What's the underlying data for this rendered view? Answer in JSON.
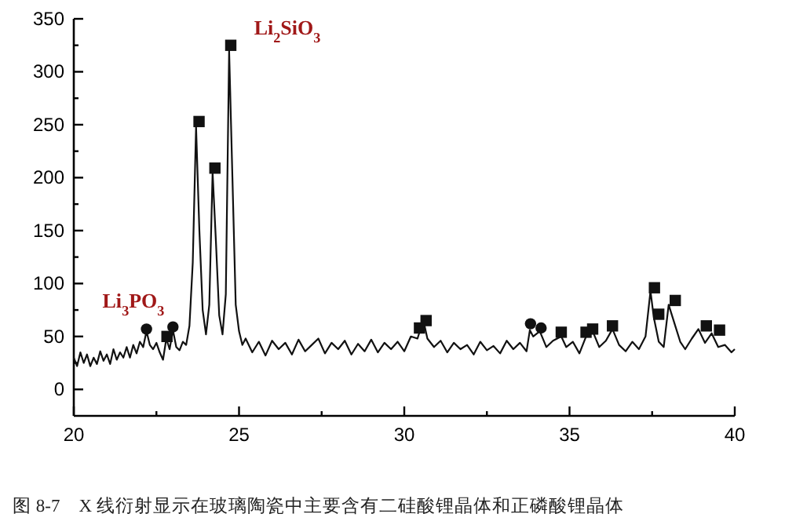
{
  "chart_data": {
    "type": "line",
    "xlim": [
      20,
      40
    ],
    "ylim": [
      -25,
      350
    ],
    "xticks": [
      20,
      {
        "value": 22.5,
        "label": null
      },
      25,
      {
        "value": 27.5,
        "label": null
      },
      30,
      {
        "value": 32.5,
        "label": null
      },
      35,
      {
        "value": 37.5,
        "label": null
      },
      40
    ],
    "yticks": [
      0,
      {
        "value": 25,
        "label": null
      },
      50,
      {
        "value": 75,
        "label": null
      },
      100,
      {
        "value": 125,
        "label": null
      },
      150,
      {
        "value": 175,
        "label": null
      },
      200,
      {
        "value": 225,
        "label": null
      },
      250,
      {
        "value": 275,
        "label": null
      },
      300,
      {
        "value": 325,
        "label": null
      },
      350
    ],
    "series": [
      {
        "color": "#111111",
        "line_style": "solid",
        "marker": "none",
        "x": [
          20.0,
          20.1,
          20.2,
          20.3,
          20.4,
          20.5,
          20.6,
          20.7,
          20.8,
          20.9,
          21.0,
          21.1,
          21.2,
          21.3,
          21.4,
          21.5,
          21.6,
          21.7,
          21.8,
          21.9,
          22.0,
          22.1,
          22.2,
          22.3,
          22.4,
          22.5,
          22.6,
          22.7,
          22.8,
          22.9,
          23.0,
          23.1,
          23.2,
          23.3,
          23.4,
          23.5,
          23.6,
          23.7,
          23.8,
          23.9,
          24.0,
          24.1,
          24.2,
          24.3,
          24.4,
          24.5,
          24.6,
          24.7,
          24.8,
          24.9,
          25.0,
          25.1,
          25.2,
          25.4,
          25.6,
          25.8,
          26.0,
          26.2,
          26.4,
          26.6,
          26.8,
          27.0,
          27.2,
          27.4,
          27.6,
          27.8,
          28.0,
          28.2,
          28.4,
          28.6,
          28.8,
          29.0,
          29.2,
          29.4,
          29.6,
          29.8,
          30.0,
          30.2,
          30.4,
          30.5,
          30.6,
          30.7,
          30.9,
          31.1,
          31.3,
          31.5,
          31.7,
          31.9,
          32.1,
          32.3,
          32.5,
          32.7,
          32.9,
          33.1,
          33.3,
          33.5,
          33.7,
          33.8,
          33.9,
          34.1,
          34.3,
          34.5,
          34.75,
          34.9,
          35.1,
          35.3,
          35.5,
          35.7,
          35.9,
          36.1,
          36.3,
          36.5,
          36.7,
          36.9,
          37.1,
          37.3,
          37.45,
          37.55,
          37.7,
          37.85,
          38.0,
          38.2,
          38.35,
          38.5,
          38.7,
          38.9,
          39.1,
          39.3,
          39.5,
          39.7,
          39.9,
          40.0
        ],
        "values": [
          30,
          22,
          35,
          25,
          33,
          22,
          30,
          24,
          36,
          27,
          33,
          24,
          38,
          28,
          35,
          30,
          40,
          30,
          42,
          34,
          45,
          40,
          55,
          42,
          38,
          44,
          35,
          28,
          48,
          38,
          56,
          40,
          37,
          45,
          42,
          60,
          120,
          248,
          150,
          75,
          52,
          80,
          205,
          140,
          70,
          52,
          90,
          320,
          200,
          80,
          55,
          42,
          48,
          35,
          45,
          32,
          46,
          38,
          44,
          33,
          47,
          36,
          42,
          48,
          34,
          44,
          38,
          46,
          33,
          43,
          36,
          47,
          35,
          44,
          38,
          45,
          36,
          50,
          48,
          58,
          62,
          48,
          40,
          46,
          35,
          44,
          38,
          42,
          33,
          45,
          37,
          41,
          34,
          46,
          38,
          44,
          36,
          56,
          50,
          55,
          40,
          46,
          50,
          40,
          45,
          34,
          50,
          55,
          40,
          46,
          57,
          42,
          36,
          45,
          38,
          50,
          93,
          68,
          45,
          40,
          80,
          60,
          45,
          38,
          48,
          57,
          44,
          53,
          40,
          42,
          35,
          38
        ]
      },
      {
        "type": "scatter",
        "color": "#111111",
        "marker": "circle",
        "x": [
          22.2,
          23.0,
          33.82,
          34.14
        ],
        "values": [
          57,
          59,
          62,
          58
        ]
      },
      {
        "type": "scatter",
        "color": "#111111",
        "marker": "square",
        "x": [
          22.82,
          23.79,
          24.27,
          24.75,
          30.46,
          30.66,
          34.75,
          35.5,
          35.7,
          36.3,
          37.57,
          37.7,
          38.2,
          39.14,
          39.54
        ],
        "values": [
          50,
          253,
          209,
          325,
          58,
          65,
          54,
          54,
          57,
          60,
          96,
          71,
          84,
          60,
          56
        ]
      }
    ],
    "annotations": [
      "Li$_{2}$SiO$_{3}$",
      "Li$_{3}$PO$_{3}$",
      "图 8-7　X 线衍射显示在玻璃陶瓷中主要含有二硅酸锂晶体和正磷酸锂晶体"
    ]
  }
}
